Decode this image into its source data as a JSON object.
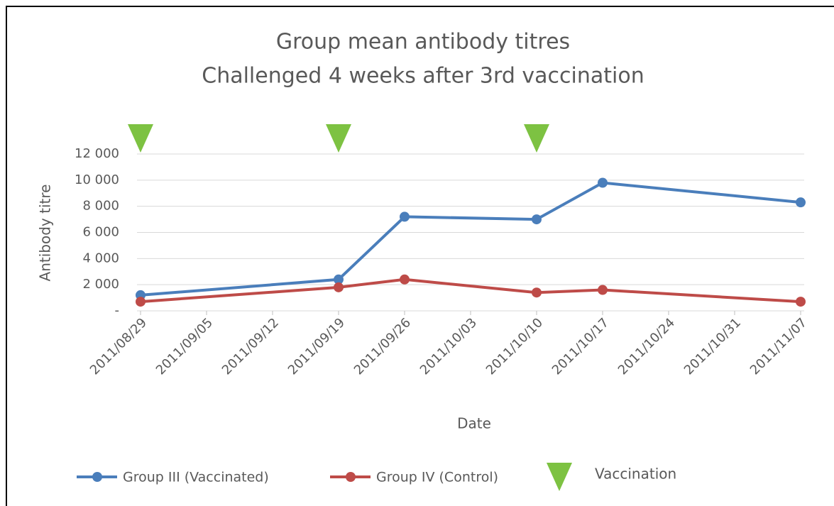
{
  "chart_data": {
    "type": "line",
    "title": [
      "Group mean antibody titres",
      "Challenged 4 weeks after 3rd vaccination"
    ],
    "x_label": "Date",
    "y_label": "Antibody titre",
    "x": [
      "2011/08/29",
      "2011/09/19",
      "2011/09/26",
      "2011/10/10",
      "2011/10/17",
      "2011/11/07"
    ],
    "series": [
      {
        "name": "Group III (Vaccinated)",
        "color": "#4a7ebb",
        "values": [
          1200,
          2400,
          7200,
          7000,
          9800,
          8300
        ]
      },
      {
        "name": "Group IV (Control)",
        "color": "#be4b48",
        "values": [
          700,
          1800,
          2400,
          1400,
          1600,
          700
        ]
      }
    ],
    "markers": {
      "name": "Vaccination",
      "color": "#7dc242",
      "x": [
        "2011/08/29",
        "2011/09/19",
        "2011/10/10"
      ]
    },
    "xlim": [
      "2011/08/29",
      "2011/11/07"
    ],
    "xticks": [
      "2011/08/29",
      "2011/09/05",
      "2011/09/12",
      "2011/09/19",
      "2011/09/26",
      "2011/10/03",
      "2011/10/10",
      "2011/10/17",
      "2011/10/24",
      "2011/10/31",
      "2011/11/07"
    ],
    "ylim": [
      0,
      12000
    ],
    "yticks": [
      {
        "value": 0,
        "label": "-"
      },
      {
        "value": 2000,
        "label": "2 000"
      },
      {
        "value": 4000,
        "label": "4 000"
      },
      {
        "value": 6000,
        "label": "6 000"
      },
      {
        "value": 8000,
        "label": "8 000"
      },
      {
        "value": 10000,
        "label": "10 000"
      },
      {
        "value": 12000,
        "label": "12 000"
      }
    ],
    "grid": true,
    "legend": "bottom"
  }
}
